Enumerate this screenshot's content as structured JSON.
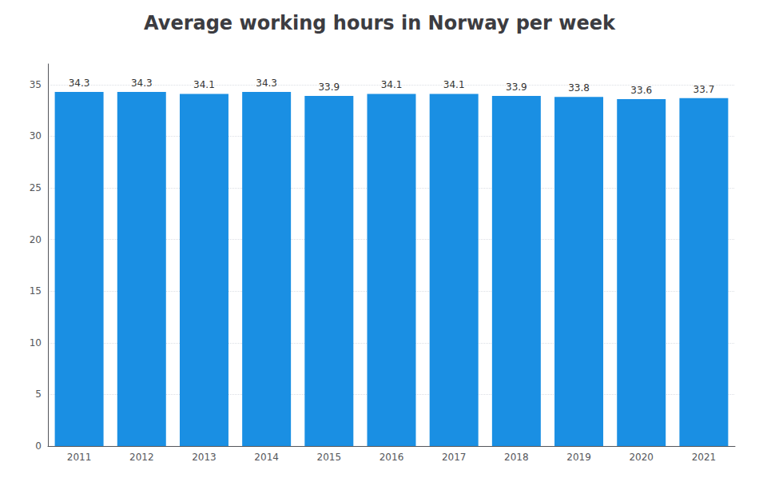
{
  "chart_data": {
    "type": "bar",
    "title": "Average working hours in Norway per week",
    "categories": [
      "2011",
      "2012",
      "2013",
      "2014",
      "2015",
      "2016",
      "2017",
      "2018",
      "2019",
      "2020",
      "2021"
    ],
    "values": [
      34.3,
      34.3,
      34.1,
      34.3,
      33.9,
      34.1,
      34.1,
      33.9,
      33.8,
      33.6,
      33.7
    ],
    "color": "#1a8fe3",
    "ylim": [
      0,
      37
    ],
    "yticks": [
      0,
      5,
      10,
      15,
      20,
      25,
      30,
      35
    ],
    "grid": true,
    "data_labels": true
  }
}
